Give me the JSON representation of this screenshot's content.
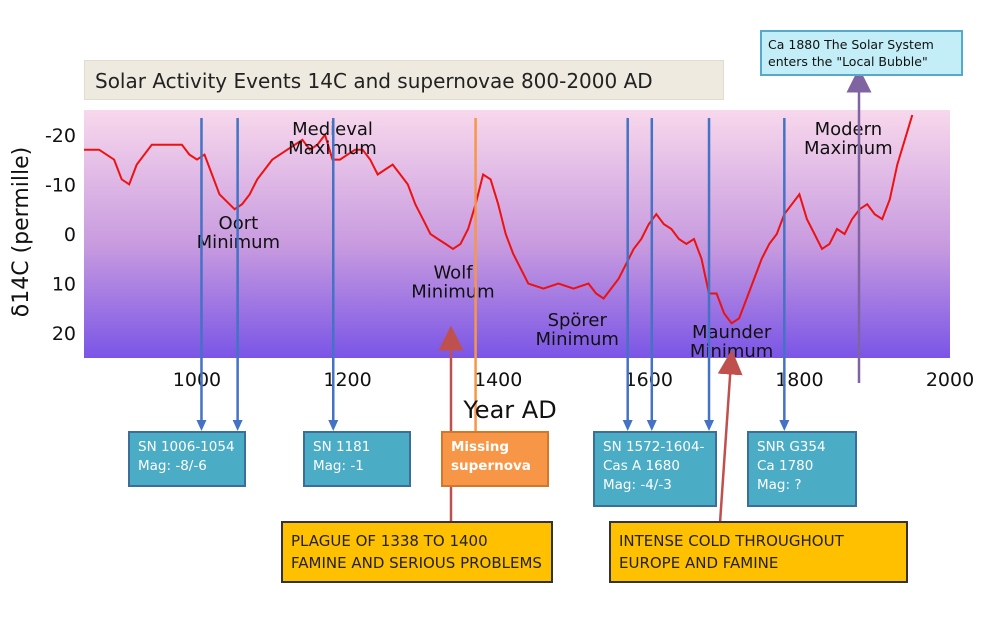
{
  "chart_data": {
    "type": "line",
    "title": "Solar Activity Events 14C and supernovae 800-2000 AD",
    "xlabel": "Year AD",
    "ylabel": "δ14C (permille)",
    "xlim": [
      850,
      2000
    ],
    "ylim": [
      -25,
      25
    ],
    "y_inverted": true,
    "x_ticks": [
      "1000",
      "1200",
      "1400",
      "1600",
      "1800",
      "2000"
    ],
    "y_ticks": [
      "-20",
      "-10",
      "0",
      "10",
      "20"
    ],
    "gradient": {
      "top": "#f8d8ec",
      "middle": "#c79adf",
      "bottom": "#7a55e6"
    },
    "series": [
      {
        "color": "#ee1111",
        "x": [
          850,
          870,
          890,
          900,
          910,
          920,
          940,
          960,
          980,
          990,
          1000,
          1010,
          1020,
          1030,
          1050,
          1060,
          1070,
          1080,
          1100,
          1120,
          1140,
          1150,
          1160,
          1170,
          1180,
          1190,
          1200,
          1210,
          1220,
          1230,
          1240,
          1250,
          1260,
          1270,
          1280,
          1290,
          1300,
          1310,
          1320,
          1330,
          1340,
          1350,
          1360,
          1370,
          1380,
          1390,
          1400,
          1410,
          1420,
          1440,
          1460,
          1480,
          1500,
          1520,
          1530,
          1540,
          1550,
          1560,
          1570,
          1580,
          1590,
          1600,
          1610,
          1620,
          1630,
          1640,
          1650,
          1660,
          1670,
          1680,
          1690,
          1700,
          1710,
          1720,
          1730,
          1740,
          1750,
          1760,
          1770,
          1780,
          1790,
          1800,
          1810,
          1820,
          1830,
          1840,
          1850,
          1860,
          1870,
          1880,
          1890,
          1900,
          1910,
          1920,
          1930,
          1940,
          1950
        ],
        "y": [
          -17,
          -17,
          -15,
          -11,
          -10,
          -14,
          -18,
          -18,
          -18,
          -16,
          -15,
          -16,
          -12,
          -8,
          -5,
          -6,
          -8,
          -11,
          -15,
          -17,
          -19,
          -17,
          -18,
          -20,
          -15,
          -15,
          -16,
          -17,
          -17,
          -15,
          -12,
          -13,
          -14,
          -12,
          -10,
          -6,
          -3,
          0,
          1,
          2,
          3,
          2,
          -1,
          -6,
          -12,
          -11,
          -6,
          0,
          4,
          10,
          11,
          10,
          11,
          10,
          12,
          13,
          11,
          9,
          6,
          3,
          1,
          -2,
          -4,
          -2,
          -1,
          1,
          2,
          1,
          5,
          12,
          12,
          16,
          18,
          17,
          13,
          9,
          5,
          2,
          0,
          -4,
          -6,
          -8,
          -3,
          0,
          3,
          2,
          -1,
          0,
          -3,
          -5,
          -6,
          -4,
          -3,
          -7,
          -14,
          -19,
          -24
        ]
      }
    ],
    "annotations": [
      {
        "label_lines": [
          "Medieval",
          "Maximum"
        ],
        "x": 1180,
        "y": -20
      },
      {
        "label_lines": [
          "Oort",
          "Minimum"
        ],
        "x": 1055,
        "y": -1
      },
      {
        "label_lines": [
          "Wolf",
          "Minimum"
        ],
        "x": 1340,
        "y": 9
      },
      {
        "label_lines": [
          "Spörer",
          "Minimum"
        ],
        "x": 1505,
        "y": 18.5
      },
      {
        "label_lines": [
          "Maunder",
          "Minimum"
        ],
        "x": 1710,
        "y": 21
      },
      {
        "label_lines": [
          "Modern",
          "Maximum"
        ],
        "x": 1865,
        "y": -20
      }
    ],
    "event_lines": [
      {
        "years": [
          1006,
          1054,
          1181,
          1572,
          1604,
          1680,
          1780
        ],
        "color": "#4472c4",
        "label": "supernova"
      },
      {
        "years": [
          1370
        ],
        "color": "#f79646",
        "label": "missing supernova"
      },
      {
        "years": [
          1880
        ],
        "color": "#8064a2",
        "label": "solar system bubble"
      }
    ]
  },
  "callouts": {
    "sn_1006": {
      "line1": "SN 1006-1054",
      "line2": "Mag: -8/-6"
    },
    "sn_1181": {
      "line1": "SN 1181",
      "line2": "Mag: -1"
    },
    "missing": {
      "line1": "Missing",
      "line2": "supernova"
    },
    "sn_1572": {
      "line1": "SN 1572-1604-",
      "line2": "Cas A 1680",
      "line3": "Mag: -4/-3"
    },
    "snr_g354": {
      "line1": "SNR G354",
      "line2": "Ca 1780",
      "line3": "Mag: ?"
    },
    "bubble": {
      "line1": "Ca 1880 The Solar System",
      "line2": "enters the \"Local Bubble\""
    },
    "plague": {
      "line1": "PLAGUE OF 1338 TO 1400",
      "line2": "FAMINE AND SERIOUS PROBLEMS"
    },
    "cold": {
      "line1": "INTENSE COLD THROUGHOUT",
      "line2": "EUROPE AND FAMINE"
    }
  }
}
